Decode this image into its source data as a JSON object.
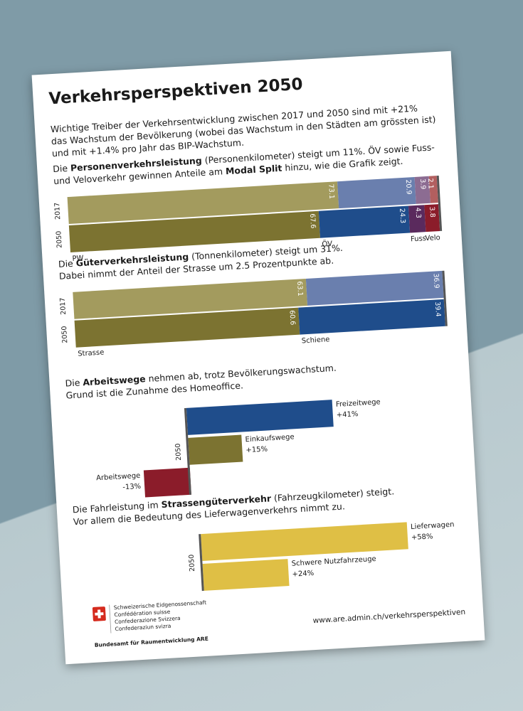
{
  "title": "Verkehrsperspektiven 2050",
  "intro": [
    "Wichtige Treiber der Verkehrsentwicklung zwischen 2017 und 2050 sind mit +21%",
    "das Wachstum der Bevölkerung (wobei das Wachstum in den Städten am grössten ist)",
    "und mit +1.4% pro Jahr das BIP-Wachstum."
  ],
  "chart_data": [
    {
      "type": "bar",
      "stacked": true,
      "caption": [
        [
          {
            "text": "Die "
          },
          {
            "text": "Personenverkehrsleistung",
            "bold": true
          },
          {
            "text": " (Personenkilometer) steigt um 11%. ÖV sowie Fuss-"
          }
        ],
        [
          {
            "text": "und Veloverkehr gewinnen Anteile am "
          },
          {
            "text": "Modal Split",
            "bold": true
          },
          {
            "text": " hinzu, wie die Grafik zeigt."
          }
        ]
      ],
      "categories": [
        "2017",
        "2050"
      ],
      "series": [
        {
          "name": "PW",
          "colors": [
            "#a39b5e",
            "#7c7331"
          ],
          "values": [
            73.1,
            67.6
          ]
        },
        {
          "name": "ÖV",
          "colors": [
            "#6a7fae",
            "#1f4d8b"
          ],
          "values": [
            20.9,
            24.3
          ]
        },
        {
          "name": "Fuss",
          "colors": [
            "#8c6c92",
            "#5a2a5d"
          ],
          "values": [
            3.9,
            4.3
          ]
        },
        {
          "name": "Velo",
          "colors": [
            "#b25f5f",
            "#8b1c2a"
          ],
          "values": [
            2.1,
            3.8
          ]
        }
      ]
    },
    {
      "type": "bar",
      "stacked": true,
      "caption": [
        [
          {
            "text": "Die "
          },
          {
            "text": "Güterverkehrsleistung",
            "bold": true
          },
          {
            "text": " (Tonnenkilometer) steigt um 31%."
          }
        ],
        [
          {
            "text": "Dabei nimmt der Anteil der Strasse um 2.5 Prozentpunkte ab."
          }
        ]
      ],
      "categories": [
        "2017",
        "2050"
      ],
      "series": [
        {
          "name": "Strasse",
          "colors": [
            "#a39b5e",
            "#7c7331"
          ],
          "values": [
            63.1,
            60.6
          ]
        },
        {
          "name": "Schiene",
          "colors": [
            "#6a7fae",
            "#1f4d8b"
          ],
          "values": [
            36.9,
            39.4
          ]
        }
      ]
    },
    {
      "type": "diverging",
      "caption": [
        [
          {
            "text": "Die "
          },
          {
            "text": "Arbeitswege",
            "bold": true
          },
          {
            "text": " nehmen ab, trotz Bevölkerungswachstum."
          }
        ],
        [
          {
            "text": "Grund ist die Zunahme des Homeoffice."
          }
        ]
      ],
      "categories": [
        "2050"
      ],
      "series": [
        {
          "name": "Freizeitwege",
          "color": "#1f4d8b",
          "values": [
            41
          ],
          "value_labels": [
            "+41%"
          ]
        },
        {
          "name": "Einkaufswege",
          "color": "#7c7331",
          "values": [
            15
          ],
          "value_labels": [
            "+15%"
          ]
        },
        {
          "name": "Arbeitswege",
          "color": "#8b1c2a",
          "values": [
            -13
          ],
          "value_labels": [
            "-13%"
          ]
        }
      ]
    },
    {
      "type": "diverging",
      "caption": [
        [
          {
            "text": "Die Fahrleistung im "
          },
          {
            "text": "Strassengüterverkehr",
            "bold": true
          },
          {
            "text": " (Fahrzeugkilometer) steigt."
          }
        ],
        [
          {
            "text": "Vor allem die Bedeutung des Lieferwagenverkehrs nimmt zu."
          }
        ]
      ],
      "categories": [
        "2050"
      ],
      "series": [
        {
          "name": "Lieferwagen",
          "color": "#dfbf45",
          "values": [
            58
          ],
          "value_labels": [
            "+58%"
          ]
        },
        {
          "name": "Schwere Nutzfahrzeuge",
          "color": "#dfbf45",
          "values": [
            24
          ],
          "value_labels": [
            "+24%"
          ]
        }
      ]
    }
  ],
  "footer": {
    "agency_lines": [
      "Schweizerische Eidgenossenschaft",
      "Confédération suisse",
      "Confederazione Svizzera",
      "Confederaziun svizra"
    ],
    "office": "Bundesamt für Raumentwicklung ARE",
    "url": "www.are.admin.ch/verkehrsperspektiven"
  }
}
